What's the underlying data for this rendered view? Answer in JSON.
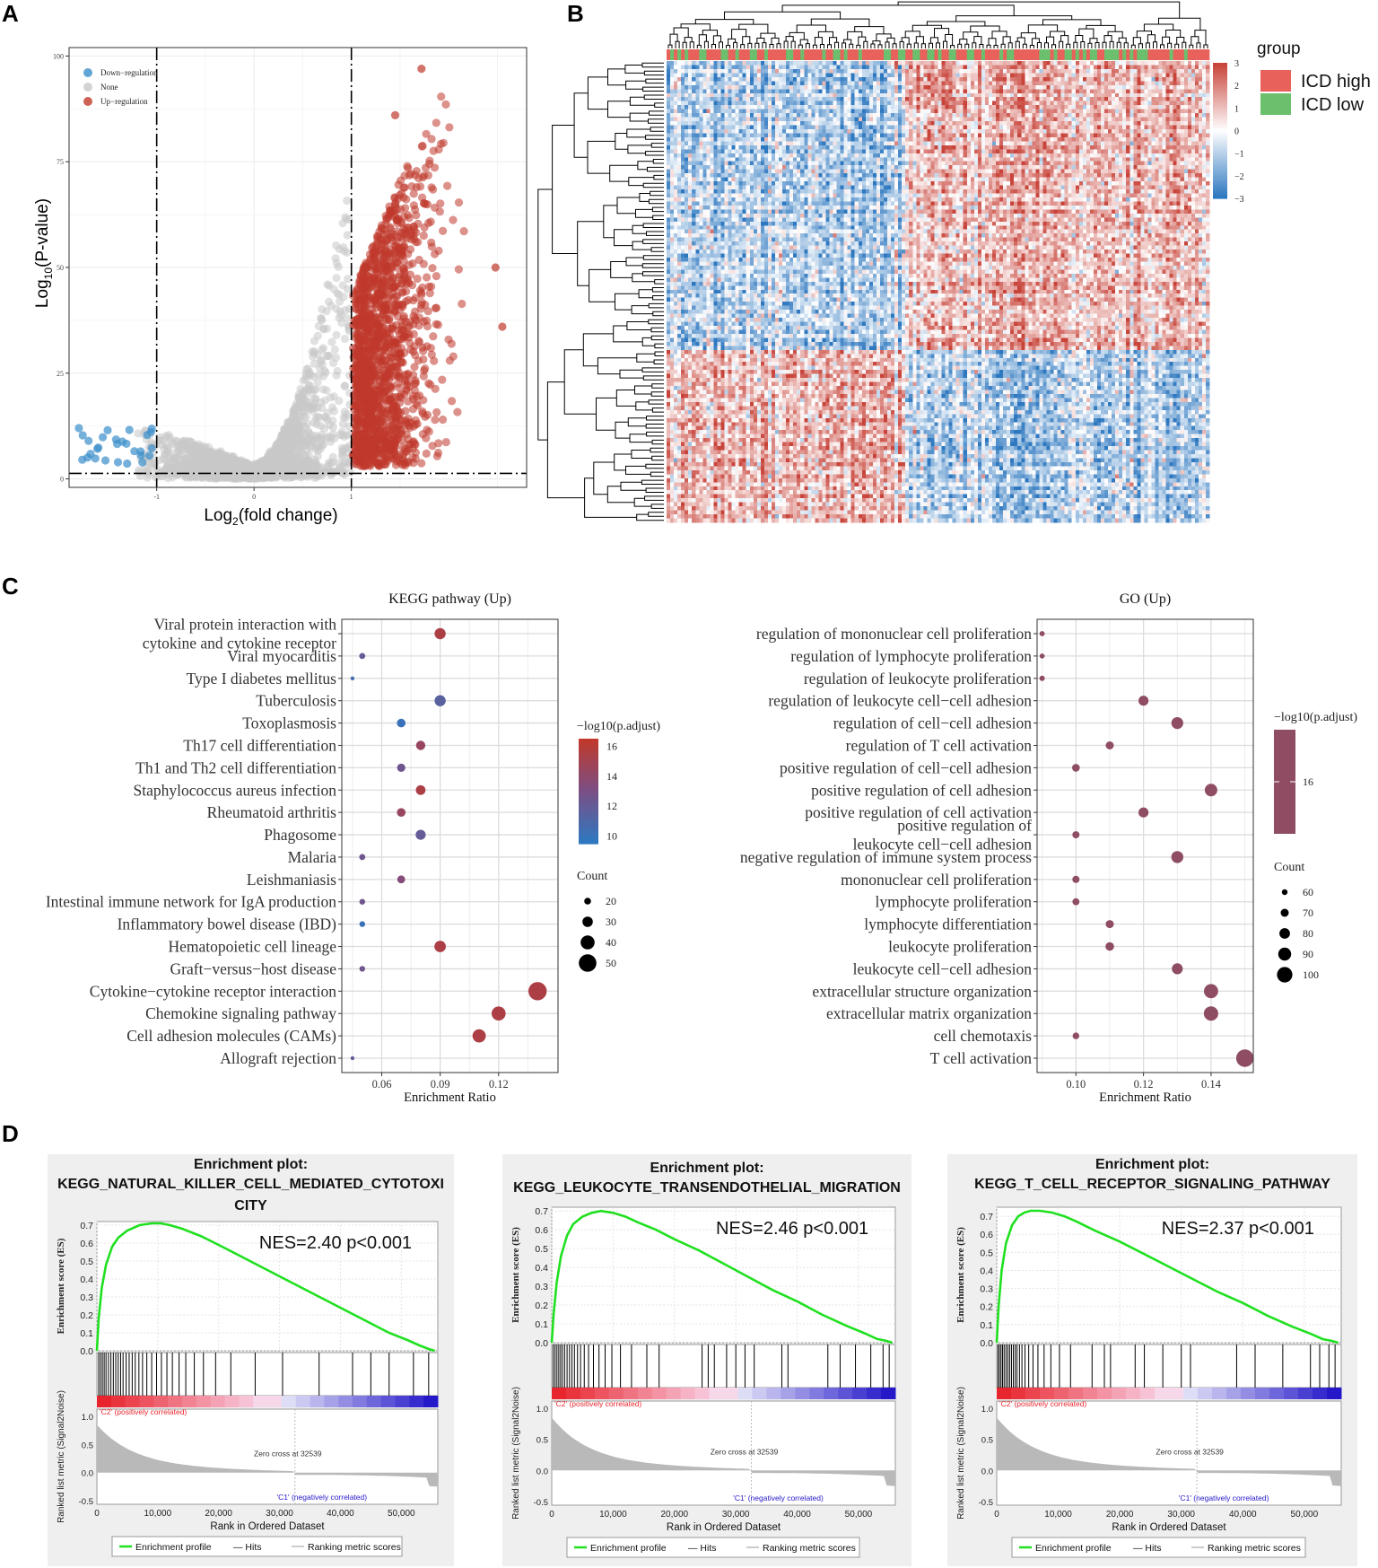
{
  "panels": {
    "a": "A",
    "b": "B",
    "c": "C",
    "d": "D"
  },
  "chart_data": [
    {
      "type": "scatter",
      "title": "",
      "xlabel": "Log2(fold change)",
      "ylabel": "Log10(P-value)",
      "xlabel_main": "Log",
      "xlabel_sub": "2",
      "xlabel_rest": "(fold change)",
      "ylabel_main": "Log",
      "ylabel_sub": "10",
      "ylabel_rest": "(P-value)",
      "xlim": [
        -1.9,
        2.8
      ],
      "ylim": [
        -2,
        102
      ],
      "xticks": [
        -1,
        0,
        1
      ],
      "xtick_labels": [
        "-1",
        "0",
        "1"
      ],
      "yticks": [
        0,
        25,
        50,
        75,
        100
      ],
      "ytick_labels": [
        "0",
        "25",
        "50",
        "75",
        "100"
      ],
      "thresholds": {
        "x": [
          -1,
          1
        ],
        "y": 1.3
      },
      "legend": [
        {
          "label": "Down−regulation",
          "color": "#3a8fcb"
        },
        {
          "label": "None",
          "color": "#c8c8c8"
        },
        {
          "label": "Up−regulation",
          "color": "#c0392b"
        }
      ],
      "legend_position": "top-left",
      "groups": {
        "down_count": 26,
        "none_count": 2400,
        "up_count": 1500
      },
      "highlight_points": [
        {
          "x": 1.72,
          "y": 97
        },
        {
          "x": 1.45,
          "y": 86
        },
        {
          "x": 2.48,
          "y": 50
        },
        {
          "x": 2.55,
          "y": 36
        },
        {
          "x": -1.8,
          "y": 12
        },
        {
          "x": -1.7,
          "y": 9
        }
      ]
    },
    {
      "type": "heatmap",
      "title": "",
      "legend_title": "group",
      "groups": [
        {
          "label": "ICD high",
          "color": "#e8615b"
        },
        {
          "label": "ICD low",
          "color": "#6cbf6c"
        }
      ],
      "colorbar_ticks": [
        3,
        2,
        1,
        0,
        -1,
        -2,
        -3
      ],
      "colorbar_tick_labels": [
        "3",
        "2",
        "1",
        "0",
        "−1",
        "−2",
        "−3"
      ],
      "colorbar_low": "#2e78c0",
      "colorbar_mid": "#ffffff",
      "colorbar_high": "#c8443a",
      "n_rows": 115,
      "n_cols": 150,
      "up_rows_fraction": 0.63,
      "left_cluster_cols_fraction": 0.44
    },
    {
      "type": "scatter",
      "title": "KEGG pathway (Up)",
      "xlabel": "Enrichment Ratio",
      "ylabel": "",
      "xlim": [
        0.0395,
        0.1505
      ],
      "xticks": [
        0.06,
        0.09,
        0.12
      ],
      "xtick_labels": [
        "0.06",
        "0.09",
        "0.12"
      ],
      "categories": [
        "Viral protein interaction with cytokine and cytokine receptor",
        "Viral myocarditis",
        "Type I diabetes mellitus",
        "Tuberculosis",
        "Toxoplasmosis",
        "Th17 cell differentiation",
        "Th1 and Th2 cell differentiation",
        "Staphylococcus aureus infection",
        "Rheumatoid arthritis",
        "Phagosome",
        "Malaria",
        "Leishmaniasis",
        "Intestinal immune network for IgA production",
        "Inflammatory bowel disease (IBD)",
        "Hematopoietic cell lineage",
        "Graft−versus−host disease",
        "Cytokine−cytokine receptor interaction",
        "Chemokine signaling pathway",
        "Cell adhesion molecules (CAMs)",
        "Allograft rejection"
      ],
      "label_lines": [
        [
          "Viral protein interaction with",
          "cytokine and cytokine receptor"
        ],
        [
          "Viral myocarditis"
        ],
        [
          "Type I diabetes mellitus"
        ],
        [
          "Tuberculosis"
        ],
        [
          "Toxoplasmosis"
        ],
        [
          "Th17 cell differentiation"
        ],
        [
          "Th1 and Th2 cell differentiation"
        ],
        [
          "Staphylococcus aureus infection"
        ],
        [
          "Rheumatoid arthritis"
        ],
        [
          "Phagosome"
        ],
        [
          "Malaria"
        ],
        [
          "Leishmaniasis"
        ],
        [
          "Intestinal immune network for IgA production"
        ],
        [
          "Inflammatory bowel disease (IBD)"
        ],
        [
          "Hematopoietic cell lineage"
        ],
        [
          "Graft−versus−host disease"
        ],
        [
          "Cytokine−cytokine receptor interaction"
        ],
        [
          "Chemokine signaling pathway"
        ],
        [
          "Cell adhesion molecules (CAMs)"
        ],
        [
          "Allograft rejection"
        ]
      ],
      "enrichment_ratio": [
        0.09,
        0.05,
        0.045,
        0.09,
        0.07,
        0.08,
        0.07,
        0.08,
        0.07,
        0.08,
        0.05,
        0.07,
        0.05,
        0.05,
        0.09,
        0.05,
        0.14,
        0.12,
        0.11,
        0.045
      ],
      "neg_log10_padj": [
        15.5,
        12.0,
        10.5,
        11.5,
        10.0,
        14.5,
        12.5,
        15.5,
        14.5,
        12.0,
        12.5,
        13.5,
        12.5,
        10.0,
        15.5,
        12.5,
        15.5,
        15.5,
        15.5,
        12.0
      ],
      "count": [
        32,
        18,
        12,
        32,
        25,
        27,
        24,
        28,
        25,
        29,
        18,
        23,
        17,
        17,
        33,
        17,
        52,
        40,
        38,
        12
      ],
      "color_title": "−log10(p.adjust)",
      "color_ticks": [
        16,
        14,
        12,
        10
      ],
      "color_tick_labels": [
        "16",
        "14",
        "12",
        "10"
      ],
      "color_range": [
        9.5,
        16.5
      ],
      "size_title": "Count",
      "size_ticks": [
        20,
        30,
        40,
        50
      ],
      "size_tick_labels": [
        "20",
        "30",
        "40",
        "50"
      ]
    },
    {
      "type": "scatter",
      "title": "GO (Up)",
      "xlabel": "Enrichment Ratio",
      "ylabel": "",
      "xlim": [
        0.0885,
        0.1525
      ],
      "xticks": [
        0.1,
        0.12,
        0.14
      ],
      "xtick_labels": [
        "0.10",
        "0.12",
        "0.14"
      ],
      "categories": [
        "regulation of mononuclear cell proliferation",
        "regulation of lymphocyte proliferation",
        "regulation of leukocyte proliferation",
        "regulation of leukocyte cell−cell adhesion",
        "regulation of cell−cell adhesion",
        "regulation of T cell activation",
        "positive regulation of cell−cell adhesion",
        "positive regulation of cell adhesion",
        "positive regulation of cell activation",
        "positive regulation of leukocyte cell−cell adhesion",
        "negative regulation of immune system process",
        "mononuclear cell proliferation",
        "lymphocyte proliferation",
        "lymphocyte differentiation",
        "leukocyte proliferation",
        "leukocyte cell−cell adhesion",
        "extracellular structure organization",
        "extracellular matrix organization",
        "cell chemotaxis",
        "T cell activation"
      ],
      "label_lines": [
        [
          "regulation of mononuclear cell proliferation"
        ],
        [
          "regulation of lymphocyte proliferation"
        ],
        [
          "regulation of leukocyte proliferation"
        ],
        [
          "regulation of leukocyte cell−cell adhesion"
        ],
        [
          "regulation of cell−cell adhesion"
        ],
        [
          "regulation of T cell activation"
        ],
        [
          "positive regulation of cell−cell adhesion"
        ],
        [
          "positive regulation of cell adhesion"
        ],
        [
          "positive regulation of cell activation"
        ],
        [
          "positive regulation of",
          "leukocyte cell−cell adhesion"
        ],
        [
          "negative regulation of immune system process"
        ],
        [
          "mononuclear cell proliferation"
        ],
        [
          "lymphocyte proliferation"
        ],
        [
          "lymphocyte differentiation"
        ],
        [
          "leukocyte proliferation"
        ],
        [
          "leukocyte cell−cell adhesion"
        ],
        [
          "extracellular structure organization"
        ],
        [
          "extracellular matrix organization"
        ],
        [
          "cell chemotaxis"
        ],
        [
          "T cell activation"
        ]
      ],
      "enrichment_ratio": [
        0.09,
        0.09,
        0.09,
        0.12,
        0.13,
        0.11,
        0.1,
        0.14,
        0.12,
        0.1,
        0.13,
        0.1,
        0.1,
        0.11,
        0.11,
        0.13,
        0.14,
        0.14,
        0.1,
        0.15
      ],
      "neg_log10_padj": [
        16,
        16,
        16,
        16,
        16,
        16,
        16,
        16,
        16,
        16,
        16,
        16,
        16,
        16,
        16,
        16,
        16,
        16,
        16,
        16
      ],
      "count": [
        58,
        57,
        59,
        78,
        85,
        70,
        68,
        88,
        78,
        66,
        86,
        66,
        65,
        70,
        72,
        82,
        95,
        96,
        64,
        108
      ],
      "color_title": "−log10(p.adjust)",
      "color_ticks": [
        16
      ],
      "color_tick_labels": [
        "16"
      ],
      "size_title": "Count",
      "size_ticks": [
        60,
        70,
        80,
        90,
        100
      ],
      "size_tick_labels": [
        "60",
        "70",
        "80",
        "90",
        "100"
      ]
    },
    {
      "type": "line",
      "title": "Enrichment plot:",
      "subtitle_lines": [
        "KEGG_NATURAL_KILLER_CELL_MEDIATED_CYTOTOXI",
        "CITY"
      ],
      "stats": "NES=2.40    p<0.001",
      "ylabel": "Enrichment score (ES)",
      "ylabel2": "Ranked list metric (Signal2Noise)",
      "xlabel": "Rank in Ordered Dataset",
      "x": [
        0,
        300,
        800,
        1500,
        2500,
        3500,
        5000,
        7000,
        9000,
        10500,
        12000,
        14000,
        17000,
        20000,
        24000,
        28000,
        32000,
        36000,
        40000,
        44000,
        48000,
        51000,
        53000,
        54500,
        55500
      ],
      "y": [
        0.0,
        0.18,
        0.35,
        0.48,
        0.58,
        0.63,
        0.67,
        0.7,
        0.71,
        0.71,
        0.7,
        0.68,
        0.64,
        0.59,
        0.52,
        0.45,
        0.38,
        0.31,
        0.24,
        0.17,
        0.1,
        0.06,
        0.03,
        0.01,
        0.0
      ],
      "ylim": [
        0.0,
        0.72
      ],
      "yticks": [
        0.0,
        0.1,
        0.2,
        0.3,
        0.4,
        0.5,
        0.6,
        0.7
      ],
      "ytick_labels": [
        "0.0",
        "0.1",
        "0.2",
        "0.3",
        "0.4",
        "0.5",
        "0.6",
        "0.7"
      ],
      "xlim": [
        0,
        56000
      ],
      "xticks": [
        0,
        10000,
        20000,
        30000,
        40000,
        50000
      ],
      "xtick_labels": [
        "0",
        "10,000",
        "20,000",
        "30,000",
        "40,000",
        "50,000"
      ],
      "metric_ylim": [
        -0.5,
        1.0
      ],
      "metric_yticks": [
        1.0,
        0.5,
        0.0,
        -0.5
      ],
      "metric_ytick_labels": [
        "1.0",
        "0.5",
        "0.0",
        "-0.5"
      ],
      "hits": [
        300,
        600,
        900,
        1200,
        1500,
        1900,
        2300,
        2700,
        3100,
        3500,
        3900,
        4300,
        4800,
        5300,
        5800,
        6300,
        6900,
        7500,
        8200,
        9000,
        9800,
        10600,
        11500,
        12400,
        13500,
        14600,
        16000,
        17500,
        19500,
        22000,
        26000,
        30500,
        36500,
        42000,
        45000,
        48000,
        52000,
        54500
      ],
      "zero_cross": "Zero cross at 32539",
      "pos_label": "'C2' (positively correlated)",
      "neg_label": "'C1' (negatively correlated)",
      "legend": [
        "Enrichment profile",
        "Hits",
        "Ranking metric scores"
      ],
      "legend_hits_prefix": "—",
      "colors": {
        "es": "#20e020",
        "pos": "#e8242c",
        "neg": "#2418c8"
      }
    },
    {
      "type": "line",
      "title": "Enrichment plot:",
      "subtitle_lines": [
        "KEGG_LEUKOCYTE_TRANSENDOTHELIAL_MIGRATION"
      ],
      "stats": "NES=2.46    p<0.001",
      "ylabel": "Enrichment score (ES)",
      "ylabel2": "Ranked list metric (Signal2Noise)",
      "xlabel": "Rank in Ordered Dataset",
      "x": [
        0,
        300,
        800,
        1500,
        2500,
        3500,
        5000,
        6500,
        8000,
        10000,
        12000,
        14000,
        17000,
        20000,
        24000,
        28000,
        32000,
        36000,
        40000,
        44000,
        48000,
        51000,
        53000,
        54500,
        55500
      ],
      "y": [
        0.0,
        0.15,
        0.32,
        0.46,
        0.57,
        0.63,
        0.67,
        0.69,
        0.7,
        0.69,
        0.67,
        0.64,
        0.6,
        0.55,
        0.49,
        0.42,
        0.35,
        0.28,
        0.22,
        0.15,
        0.09,
        0.05,
        0.02,
        0.01,
        0.0
      ],
      "ylim": [
        0.0,
        0.72
      ],
      "yticks": [
        0.0,
        0.1,
        0.2,
        0.3,
        0.4,
        0.5,
        0.6,
        0.7
      ],
      "ytick_labels": [
        "0.0",
        "0.1",
        "0.2",
        "0.3",
        "0.4",
        "0.5",
        "0.6",
        "0.7"
      ],
      "xlim": [
        0,
        56000
      ],
      "xticks": [
        0,
        10000,
        20000,
        30000,
        40000,
        50000
      ],
      "xtick_labels": [
        "0",
        "10,000",
        "20,000",
        "30,000",
        "40,000",
        "50,000"
      ],
      "metric_ylim": [
        -0.5,
        1.0
      ],
      "metric_yticks": [
        1.0,
        0.5,
        0.0,
        -0.5
      ],
      "metric_ytick_labels": [
        "1.0",
        "0.5",
        "0.0",
        "-0.5"
      ],
      "hits": [
        250,
        550,
        850,
        1150,
        1450,
        1750,
        2100,
        2500,
        2900,
        3300,
        3700,
        4200,
        4700,
        5300,
        6000,
        6800,
        7700,
        8700,
        9800,
        11200,
        13000,
        15500,
        17500,
        24500,
        25500,
        26500,
        28500,
        30000,
        31500,
        33000,
        37500,
        38500,
        45000,
        47000,
        49500,
        52000,
        54000,
        55000
      ],
      "zero_cross": "Zero cross at 32539",
      "pos_label": "'C2' (positively correlated)",
      "neg_label": "'C1' (negatively correlated)",
      "legend": [
        "Enrichment profile",
        "Hits",
        "Ranking metric scores"
      ],
      "legend_hits_prefix": "—",
      "colors": {
        "es": "#20e020",
        "pos": "#e8242c",
        "neg": "#2418c8"
      }
    },
    {
      "type": "line",
      "title": "Enrichment plot:",
      "subtitle_lines": [
        "KEGG_T_CELL_RECEPTOR_SIGNALING_PATHWAY"
      ],
      "stats": "NES=2.37    p<0.001",
      "ylabel": "Enrichment score (ES)",
      "ylabel2": "Ranked list metric (Signal2Noise)",
      "xlabel": "Rank in Ordered Dataset",
      "x": [
        0,
        300,
        800,
        1500,
        2500,
        3500,
        4500,
        5500,
        7000,
        9000,
        11000,
        13000,
        16000,
        20000,
        24000,
        28000,
        32000,
        36000,
        40000,
        44000,
        48000,
        51000,
        53000,
        54500,
        55500
      ],
      "y": [
        0.0,
        0.2,
        0.4,
        0.55,
        0.65,
        0.7,
        0.72,
        0.73,
        0.73,
        0.72,
        0.7,
        0.67,
        0.62,
        0.56,
        0.49,
        0.42,
        0.35,
        0.28,
        0.22,
        0.15,
        0.09,
        0.05,
        0.02,
        0.01,
        0.0
      ],
      "ylim": [
        0.0,
        0.75
      ],
      "yticks": [
        0.0,
        0.1,
        0.2,
        0.3,
        0.4,
        0.5,
        0.6,
        0.7
      ],
      "ytick_labels": [
        "0.0",
        "0.1",
        "0.2",
        "0.3",
        "0.4",
        "0.5",
        "0.6",
        "0.7"
      ],
      "xlim": [
        0,
        56000
      ],
      "xticks": [
        0,
        10000,
        20000,
        30000,
        40000,
        50000
      ],
      "xtick_labels": [
        "0",
        "10,000",
        "20,000",
        "30,000",
        "40,000",
        "50,000"
      ],
      "metric_ylim": [
        -0.5,
        1.0
      ],
      "metric_yticks": [
        1.0,
        0.5,
        0.0,
        -0.5
      ],
      "metric_ytick_labels": [
        "1.0",
        "0.5",
        "0.0",
        "-0.5"
      ],
      "hits": [
        200,
        450,
        700,
        950,
        1200,
        1500,
        1800,
        2100,
        2400,
        2700,
        3000,
        3300,
        3700,
        4100,
        4600,
        5200,
        5900,
        6700,
        7700,
        8800,
        10200,
        12000,
        15500,
        17500,
        18500,
        22500,
        24000,
        27000,
        30000,
        31500,
        39000,
        42000,
        46500,
        51000,
        52500,
        54000,
        55000
      ],
      "zero_cross": "Zero cross at 32539",
      "pos_label": "'C2' (positively correlated)",
      "neg_label": "'C1' (negatively correlated)",
      "legend": [
        "Enrichment profile",
        "Hits",
        "Ranking metric scores"
      ],
      "legend_hits_prefix": "—",
      "colors": {
        "es": "#20e020",
        "pos": "#e8242c",
        "neg": "#2418c8"
      }
    }
  ]
}
